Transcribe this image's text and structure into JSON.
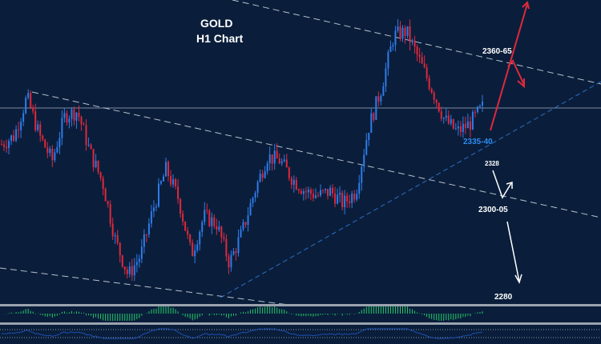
{
  "chart_data": {
    "type": "candlestick",
    "title": "GOLD",
    "subtitle": "H1 Chart",
    "grid": false,
    "colors": {
      "up": "#2f7be8",
      "down": "#e0283c",
      "background": "#0a1e3b",
      "oscillator": "#27c96a",
      "signal": "#1e4fb0"
    },
    "approx_close_path": [
      2333,
      2337,
      2356,
      2337,
      2325,
      2347,
      2349,
      2329,
      2314,
      2286,
      2269,
      2279,
      2302,
      2321,
      2306,
      2279,
      2298,
      2294,
      2275,
      2290,
      2310,
      2327,
      2325,
      2316,
      2310,
      2308,
      2310,
      2304,
      2310,
      2341,
      2360,
      2386,
      2388,
      2374,
      2360,
      2345,
      2339,
      2343,
      2351
    ],
    "annotations": [
      {
        "label": "2360-65",
        "color": "#ffffff"
      },
      {
        "label": "2335-40",
        "color": "#2d8cf0"
      },
      {
        "label": "2328",
        "color": "#ffffff"
      },
      {
        "label": "2300-05",
        "color": "#ffffff"
      },
      {
        "label": "2280",
        "color": "#ffffff"
      }
    ]
  }
}
